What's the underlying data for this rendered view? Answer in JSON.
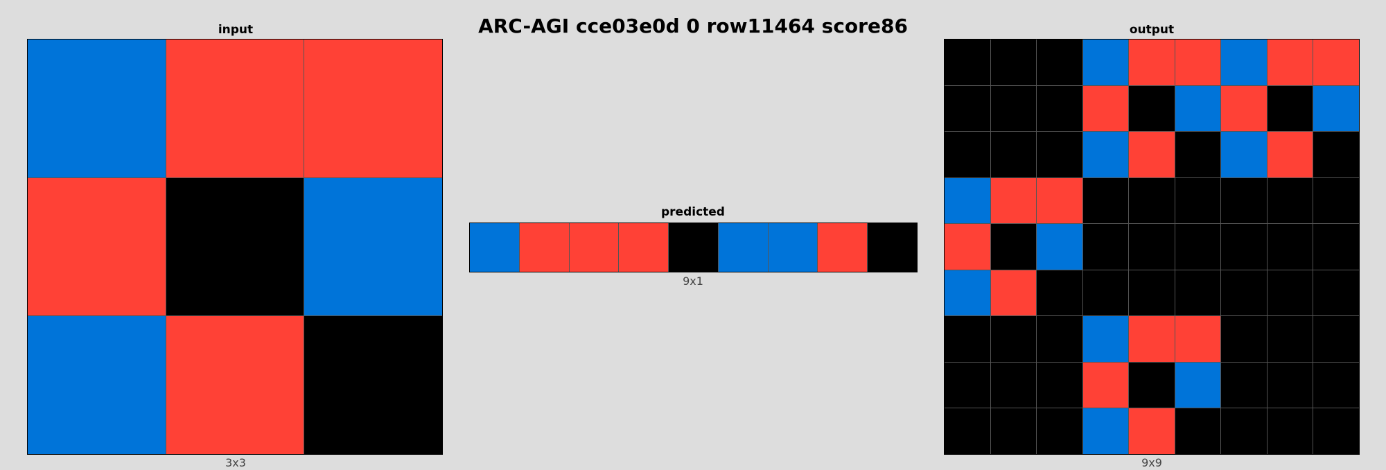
{
  "title": "ARC-AGI cce03e0d 0 row11464 score86",
  "palette": {
    "0": "#000000",
    "1": "#0074D9",
    "2": "#FF4136"
  },
  "panels": {
    "input": {
      "label": "input",
      "dims": "3x3",
      "rows": 3,
      "cols": 3,
      "cells": [
        [
          1,
          2,
          2
        ],
        [
          2,
          0,
          1
        ],
        [
          1,
          2,
          0
        ]
      ]
    },
    "predicted": {
      "label": "predicted",
      "dims": "9x1",
      "rows": 1,
      "cols": 9,
      "cells": [
        [
          1,
          2,
          2,
          2,
          0,
          1,
          1,
          2,
          0
        ]
      ]
    },
    "output": {
      "label": "output",
      "dims": "9x9",
      "rows": 9,
      "cols": 9,
      "cells": [
        [
          0,
          0,
          0,
          1,
          2,
          2,
          1,
          2,
          2
        ],
        [
          0,
          0,
          0,
          2,
          0,
          1,
          2,
          0,
          1
        ],
        [
          0,
          0,
          0,
          1,
          2,
          0,
          1,
          2,
          0
        ],
        [
          1,
          2,
          2,
          0,
          0,
          0,
          0,
          0,
          0
        ],
        [
          2,
          0,
          1,
          0,
          0,
          0,
          0,
          0,
          0
        ],
        [
          1,
          2,
          0,
          0,
          0,
          0,
          0,
          0,
          0
        ],
        [
          0,
          0,
          0,
          1,
          2,
          2,
          0,
          0,
          0
        ],
        [
          0,
          0,
          0,
          2,
          0,
          1,
          0,
          0,
          0
        ],
        [
          0,
          0,
          0,
          1,
          2,
          0,
          0,
          0,
          0
        ]
      ]
    }
  }
}
